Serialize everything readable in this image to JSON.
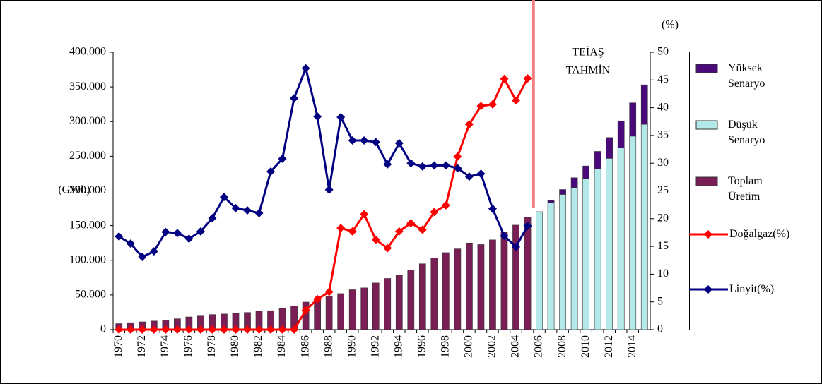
{
  "chart_data": {
    "type": "bar-line",
    "y_label": "(GWh)",
    "y2_label": "(%)",
    "annotation": [
      "TEİAŞ",
      "TAHMİN"
    ],
    "categories": [
      1970,
      null,
      1972,
      null,
      1974,
      null,
      1976,
      null,
      1978,
      null,
      1980,
      null,
      1982,
      null,
      1984,
      null,
      1986,
      null,
      1988,
      null,
      1990,
      null,
      1992,
      null,
      1994,
      null,
      1996,
      null,
      1998,
      null,
      2000,
      null,
      2002,
      null,
      2004,
      null,
      2006,
      null,
      2008,
      null,
      2010,
      null,
      2012,
      null,
      2014,
      null
    ],
    "ylim": [
      0,
      400000
    ],
    "yticks": [
      0,
      {
        "value": 50000,
        "label": "50.000"
      },
      {
        "value": 100000,
        "label": "100.000"
      },
      {
        "value": 150000,
        "label": "150.000"
      },
      {
        "value": 200000,
        "label": "200.000"
      },
      {
        "value": 250000,
        "label": "250.000"
      },
      {
        "value": 300000,
        "label": "300.000"
      },
      {
        "value": 350000,
        "label": "350.000"
      },
      {
        "value": 400000,
        "label": "400.000"
      }
    ],
    "y2lim": [
      0,
      50
    ],
    "y2ticks": [
      0,
      5,
      10,
      15,
      20,
      25,
      30,
      35,
      40,
      45,
      50
    ],
    "series": [
      {
        "name": "Yüksek Senaryo",
        "kind": "bar",
        "stack": true,
        "color": "#4b0a7a",
        "values": [
          null,
          null,
          null,
          null,
          null,
          null,
          null,
          null,
          null,
          null,
          null,
          null,
          null,
          null,
          null,
          null,
          null,
          null,
          null,
          null,
          null,
          null,
          null,
          null,
          null,
          null,
          null,
          null,
          null,
          null,
          null,
          null,
          null,
          null,
          null,
          null,
          null,
          3000,
          7000,
          14000,
          18000,
          25000,
          30000,
          39000,
          48000,
          57000
        ]
      },
      {
        "name": "Düşük Senaryo",
        "kind": "bar",
        "color": "#b3eae9",
        "values": [
          null,
          null,
          null,
          null,
          null,
          null,
          null,
          null,
          null,
          null,
          null,
          null,
          null,
          null,
          null,
          null,
          null,
          null,
          null,
          null,
          null,
          null,
          null,
          null,
          null,
          null,
          null,
          null,
          null,
          null,
          null,
          null,
          null,
          null,
          null,
          null,
          170000,
          183000,
          195000,
          205000,
          218000,
          232000,
          247000,
          262000,
          279000,
          296000
        ]
      },
      {
        "name": "Toplam Üretim",
        "kind": "bar",
        "color": "#7a1f55",
        "values": [
          8600,
          10000,
          11200,
          12400,
          13500,
          15600,
          18300,
          20600,
          21700,
          22500,
          23300,
          24700,
          26600,
          27300,
          30600,
          34200,
          39700,
          44400,
          48000,
          52000,
          57500,
          60200,
          67300,
          73800,
          78300,
          86200,
          94900,
          103300,
          111000,
          116400,
          124900,
          122700,
          129400,
          140600,
          150700,
          161900,
          null,
          null,
          null,
          null,
          null,
          null,
          null,
          null,
          null,
          null
        ]
      },
      {
        "name": "Doğalgaz(%)",
        "kind": "line",
        "axis": "y2",
        "color": "#ff0000",
        "values": [
          0,
          0,
          0,
          0,
          0,
          0,
          0,
          0,
          0,
          0,
          0,
          0,
          0,
          0,
          0,
          0,
          3.5,
          5.5,
          6.8,
          18.3,
          17.7,
          20.8,
          16.2,
          14.7,
          17.7,
          19.2,
          18.0,
          21.2,
          22.4,
          31.2,
          37.0,
          40.3,
          40.6,
          45.2,
          41.3,
          45.3,
          null,
          null,
          null,
          null,
          null,
          null,
          null,
          null,
          null,
          null
        ]
      },
      {
        "name": "Linyit(%)",
        "kind": "line",
        "axis": "y2",
        "color": "#000080",
        "values": [
          16.8,
          15.5,
          13.1,
          14.1,
          17.6,
          17.4,
          16.4,
          17.7,
          20.1,
          23.9,
          21.9,
          21.5,
          21.0,
          28.5,
          30.8,
          41.7,
          47.1,
          38.4,
          25.2,
          38.3,
          34.1,
          34.1,
          33.8,
          29.8,
          33.6,
          30.0,
          29.4,
          29.6,
          29.6,
          29.1,
          27.6,
          28.1,
          21.8,
          16.9,
          14.9,
          18.7,
          null,
          null,
          null,
          null,
          null,
          null,
          null,
          null,
          null,
          null
        ]
      }
    ]
  }
}
